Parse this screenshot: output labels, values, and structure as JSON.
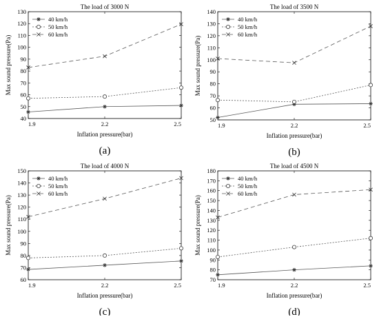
{
  "chart_data": [
    {
      "type": "line",
      "panel_label": "(a)",
      "title": "The load of 3000 N",
      "xlabel": "Inflation pressure(bar)",
      "ylabel": "Max sound pressure(Pa)",
      "x": [
        1.9,
        2.2,
        2.5
      ],
      "xlim": [
        1.9,
        2.5
      ],
      "ylim": [
        40,
        130
      ],
      "yticks": [
        40,
        50,
        60,
        70,
        80,
        90,
        100,
        110,
        120,
        130
      ],
      "xtick_labels": [
        "1.9",
        "2.2",
        "2.5"
      ],
      "legend_position": "top-left",
      "series": [
        {
          "name": "40 km/h",
          "values": [
            45.5,
            50,
            51
          ]
        },
        {
          "name": "50 km/h",
          "values": [
            57,
            58.5,
            66
          ]
        },
        {
          "name": "60 km/h",
          "values": [
            83,
            92.5,
            119.5
          ]
        }
      ]
    },
    {
      "type": "line",
      "panel_label": "(b)",
      "title": "The load of 3500 N",
      "xlabel": "Inflation pressure(bar)",
      "ylabel": "Max sound pressure(Pa)",
      "x": [
        1.9,
        2.2,
        2.5
      ],
      "xlim": [
        1.9,
        2.5
      ],
      "ylim": [
        50,
        140
      ],
      "yticks": [
        50,
        60,
        70,
        80,
        90,
        100,
        110,
        120,
        130,
        140
      ],
      "xtick_labels": [
        "1.9",
        "2.2",
        "2.5"
      ],
      "legend_position": "top-left",
      "series": [
        {
          "name": "40 km/h",
          "values": [
            52,
            63,
            63.5
          ]
        },
        {
          "name": "50 km/h",
          "values": [
            66.5,
            65,
            79
          ]
        },
        {
          "name": "60 km/h",
          "values": [
            101,
            97.5,
            128
          ]
        }
      ]
    },
    {
      "type": "line",
      "panel_label": "(c)",
      "title": "The load of 4000 N",
      "xlabel": "Inflation pressure(bar)",
      "ylabel": "Max sound pressure(Pa)",
      "x": [
        1.9,
        2.2,
        2.5
      ],
      "xlim": [
        1.9,
        2.5
      ],
      "ylim": [
        60,
        150
      ],
      "yticks": [
        60,
        70,
        80,
        90,
        100,
        110,
        120,
        130,
        140,
        150
      ],
      "xtick_labels": [
        "1.9",
        "2.2",
        "2.5"
      ],
      "legend_position": "top-left",
      "series": [
        {
          "name": "40 km/h",
          "values": [
            68.5,
            72,
            75.5
          ]
        },
        {
          "name": "50 km/h",
          "values": [
            78,
            80,
            86
          ]
        },
        {
          "name": "60 km/h",
          "values": [
            112,
            127,
            144
          ]
        }
      ]
    },
    {
      "type": "line",
      "panel_label": "(d)",
      "title": "The load of 4500 N",
      "xlabel": "Inflation pressure(bar)",
      "ylabel": "Max sound pressure(Pa)",
      "x": [
        1.9,
        2.2,
        2.5
      ],
      "xlim": [
        1.9,
        2.5
      ],
      "ylim": [
        70,
        180
      ],
      "yticks": [
        70,
        80,
        90,
        100,
        110,
        120,
        130,
        140,
        150,
        160,
        170,
        180
      ],
      "xtick_labels": [
        "1.9",
        "2.2",
        "2.5"
      ],
      "legend_position": "top-left",
      "series": [
        {
          "name": "40 km/h",
          "values": [
            75,
            80,
            84
          ]
        },
        {
          "name": "50 km/h",
          "values": [
            93,
            103,
            112
          ]
        },
        {
          "name": "60 km/h",
          "values": [
            133,
            156,
            161
          ]
        }
      ]
    }
  ]
}
